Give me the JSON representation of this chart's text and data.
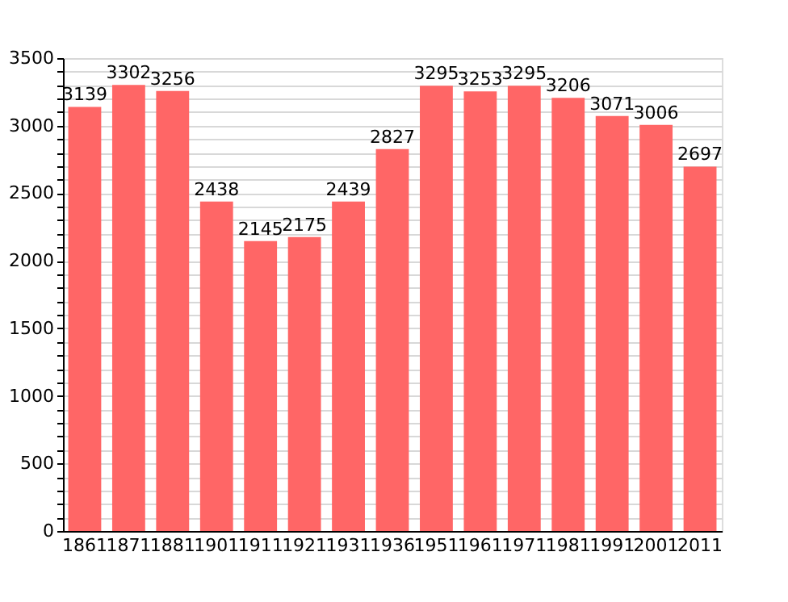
{
  "chart_data": {
    "type": "bar",
    "categories": [
      "1861",
      "1871",
      "1881",
      "1901",
      "1911",
      "1921",
      "1931",
      "1936",
      "1951",
      "1961",
      "1971",
      "1981",
      "1991",
      "2001",
      "2011"
    ],
    "values": [
      3139,
      3302,
      3256,
      2438,
      2145,
      2175,
      2439,
      2827,
      3295,
      3253,
      3295,
      3206,
      3071,
      3006,
      2697
    ],
    "color": "#ff6666",
    "ylim": [
      0,
      3500
    ],
    "yticks": [
      0,
      {
        "value": 100,
        "label": null
      },
      {
        "value": 200,
        "label": null
      },
      {
        "value": 300,
        "label": null
      },
      {
        "value": 400,
        "label": null
      },
      500,
      {
        "value": 600,
        "label": null
      },
      {
        "value": 700,
        "label": null
      },
      {
        "value": 800,
        "label": null
      },
      {
        "value": 900,
        "label": null
      },
      1000,
      {
        "value": 1100,
        "label": null
      },
      {
        "value": 1200,
        "label": null
      },
      {
        "value": 1300,
        "label": null
      },
      {
        "value": 1400,
        "label": null
      },
      1500,
      {
        "value": 1600,
        "label": null
      },
      {
        "value": 1700,
        "label": null
      },
      {
        "value": 1800,
        "label": null
      },
      {
        "value": 1900,
        "label": null
      },
      2000,
      {
        "value": 2100,
        "label": null
      },
      {
        "value": 2200,
        "label": null
      },
      {
        "value": 2300,
        "label": null
      },
      {
        "value": 2400,
        "label": null
      },
      2500,
      {
        "value": 2600,
        "label": null
      },
      {
        "value": 2700,
        "label": null
      },
      {
        "value": 2800,
        "label": null
      },
      {
        "value": 2900,
        "label": null
      },
      3000,
      {
        "value": 3100,
        "label": null
      },
      {
        "value": 3200,
        "label": null
      },
      {
        "value": 3300,
        "label": null
      },
      {
        "value": 3400,
        "label": null
      },
      3500
    ],
    "grid": true,
    "data_labels": true
  }
}
